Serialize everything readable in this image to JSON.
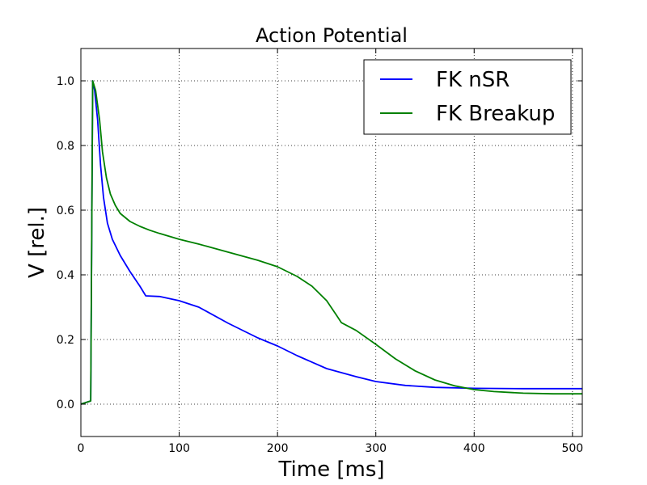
{
  "chart_data": {
    "type": "line",
    "title": "Action Potential",
    "xlabel": "Time [ms]",
    "ylabel": "V [rel.]",
    "xlim": [
      0,
      510
    ],
    "ylim": [
      -0.1,
      1.1
    ],
    "xticks": [
      0,
      100,
      200,
      300,
      400,
      500
    ],
    "yticks": [
      0.0,
      0.2,
      0.4,
      0.6,
      0.8,
      1.0
    ],
    "xtick_labels": [
      "0",
      "100",
      "200",
      "300",
      "400",
      "500"
    ],
    "ytick_labels": [
      "0.0",
      "0.2",
      "0.4",
      "0.6",
      "0.8",
      "1.0"
    ],
    "grid": true,
    "legend_position": "top-right",
    "series": [
      {
        "name": "FK nSR",
        "color": "#0000ff",
        "points": [
          [
            0,
            0.0
          ],
          [
            10,
            0.01
          ],
          [
            11,
            0.5
          ],
          [
            12,
            1.0
          ],
          [
            14,
            0.97
          ],
          [
            17,
            0.88
          ],
          [
            20,
            0.74
          ],
          [
            23,
            0.64
          ],
          [
            27,
            0.56
          ],
          [
            32,
            0.51
          ],
          [
            40,
            0.46
          ],
          [
            50,
            0.41
          ],
          [
            60,
            0.365
          ],
          [
            66,
            0.335
          ],
          [
            80,
            0.333
          ],
          [
            100,
            0.32
          ],
          [
            120,
            0.3
          ],
          [
            150,
            0.25
          ],
          [
            180,
            0.205
          ],
          [
            200,
            0.18
          ],
          [
            220,
            0.15
          ],
          [
            250,
            0.11
          ],
          [
            280,
            0.085
          ],
          [
            300,
            0.07
          ],
          [
            330,
            0.058
          ],
          [
            360,
            0.052
          ],
          [
            400,
            0.049
          ],
          [
            450,
            0.048
          ],
          [
            510,
            0.048
          ]
        ]
      },
      {
        "name": "FK Breakup",
        "color": "#008000",
        "points": [
          [
            0,
            0.0
          ],
          [
            10,
            0.01
          ],
          [
            11,
            0.5
          ],
          [
            12,
            1.0
          ],
          [
            15,
            0.97
          ],
          [
            19,
            0.88
          ],
          [
            22,
            0.78
          ],
          [
            26,
            0.7
          ],
          [
            30,
            0.65
          ],
          [
            35,
            0.615
          ],
          [
            40,
            0.59
          ],
          [
            50,
            0.565
          ],
          [
            60,
            0.55
          ],
          [
            70,
            0.538
          ],
          [
            80,
            0.528
          ],
          [
            100,
            0.51
          ],
          [
            120,
            0.495
          ],
          [
            150,
            0.47
          ],
          [
            180,
            0.445
          ],
          [
            200,
            0.425
          ],
          [
            220,
            0.395
          ],
          [
            235,
            0.365
          ],
          [
            250,
            0.32
          ],
          [
            260,
            0.275
          ],
          [
            265,
            0.252
          ],
          [
            280,
            0.228
          ],
          [
            300,
            0.185
          ],
          [
            320,
            0.14
          ],
          [
            340,
            0.103
          ],
          [
            360,
            0.075
          ],
          [
            380,
            0.057
          ],
          [
            400,
            0.045
          ],
          [
            420,
            0.039
          ],
          [
            450,
            0.034
          ],
          [
            480,
            0.032
          ],
          [
            510,
            0.032
          ]
        ]
      }
    ]
  }
}
